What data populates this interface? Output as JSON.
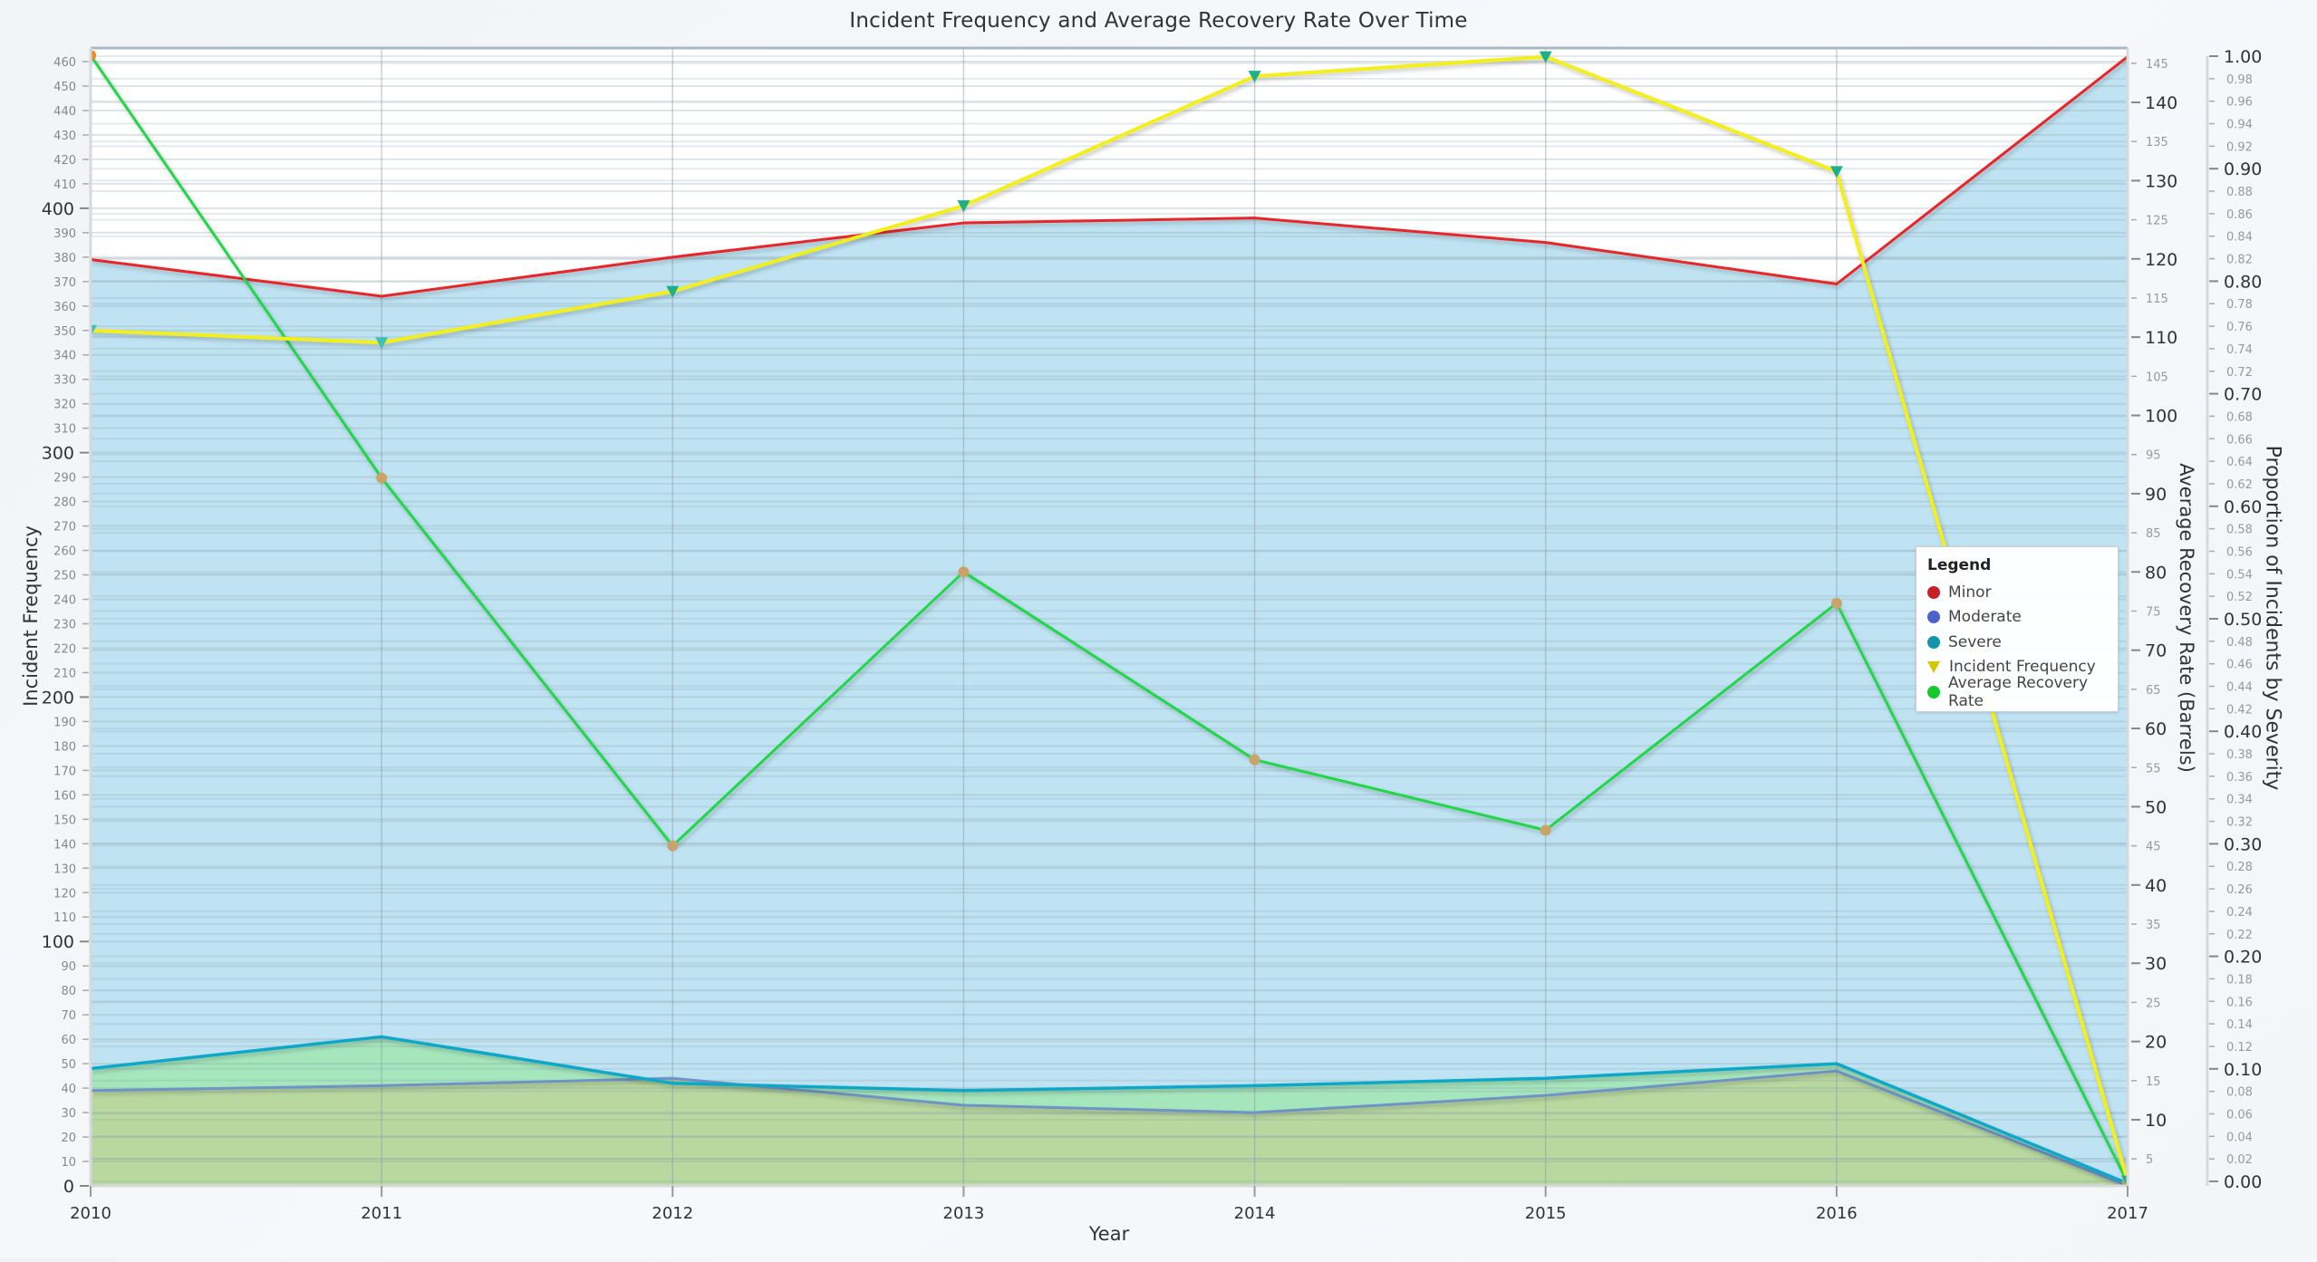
{
  "chart_data": {
    "type": "line",
    "title": "Incident Frequency and Average Recovery Rate Over Time",
    "xlabel": "Year",
    "ylabel": "Incident Frequency",
    "ylabel_right": "Average Recovery Rate (Barrels)",
    "ylabel_right2": "Proportion of Incidents by Severity",
    "categories": [
      "2010",
      "2011",
      "2012",
      "2013",
      "2014",
      "2015",
      "2016",
      "2017"
    ],
    "ylim": [
      0,
      462
    ],
    "ylim_right": [
      2,
      146
    ],
    "ylim_right2": [
      0.0,
      1.0
    ],
    "grid": true,
    "legend_position": "right, inside plot",
    "series": [
      {
        "name": "Minor",
        "kind": "area",
        "axis": "left",
        "color": "#e8262b",
        "marker_color": "#c62026",
        "values": [
          379,
          364,
          380,
          394,
          396,
          386,
          369,
          462
        ]
      },
      {
        "name": "Moderate",
        "kind": "area",
        "axis": "left",
        "color": "#6e93c4",
        "marker_color": "#4a63c8",
        "values": [
          39,
          41,
          44,
          33,
          30,
          37,
          47,
          0
        ]
      },
      {
        "name": "Severe",
        "kind": "area",
        "axis": "left",
        "color": "#11a8c8",
        "marker_color": "#1595ad",
        "values": [
          48,
          61,
          42,
          39,
          41,
          44,
          50,
          1
        ]
      },
      {
        "name": "Incident Frequency",
        "kind": "line",
        "marker": "triangle-down",
        "axis": "left",
        "color": "#f2ef1a",
        "marker_color": "#1fae8a",
        "values": [
          350,
          345,
          366,
          401,
          454,
          462,
          415,
          2
        ]
      },
      {
        "name": "Average Recovery Rate",
        "kind": "line",
        "marker": "circle",
        "axis": "right",
        "color": "#22d64a",
        "marker_color": "#c9a46a",
        "values": [
          146,
          92,
          45,
          80,
          56,
          47,
          76,
          2
        ]
      }
    ],
    "left_ticks_major": [
      0,
      100,
      200,
      300,
      400
    ],
    "left_ticks_minor": [
      10,
      20,
      30,
      40,
      50,
      60,
      70,
      80,
      90,
      110,
      120,
      130,
      140,
      150,
      160,
      170,
      180,
      190,
      210,
      220,
      230,
      240,
      250,
      260,
      270,
      280,
      290,
      310,
      320,
      330,
      340,
      350,
      360,
      370,
      380,
      390,
      410,
      420,
      430,
      440,
      450,
      460
    ],
    "right_ticks_major": [
      10,
      20,
      30,
      40,
      50,
      60,
      70,
      80,
      90,
      100,
      110,
      120,
      130,
      140
    ],
    "right_ticks_minor": [
      5,
      15,
      25,
      35,
      45,
      55,
      65,
      75,
      85,
      95,
      105,
      115,
      125,
      135,
      145
    ],
    "right2_ticks_major": [
      "0.00",
      "0.10",
      "0.20",
      "0.30",
      "0.40",
      "0.50",
      "0.60",
      "0.70",
      "0.80",
      "0.90",
      "1.00"
    ],
    "right2_ticks_minor": [
      "0.02",
      "0.04",
      "0.06",
      "0.08",
      "0.12",
      "0.14",
      "0.16",
      "0.18",
      "0.22",
      "0.24",
      "0.26",
      "0.28",
      "0.32",
      "0.34",
      "0.36",
      "0.38",
      "0.42",
      "0.44",
      "0.46",
      "0.48",
      "0.52",
      "0.54",
      "0.56",
      "0.58",
      "0.62",
      "0.64",
      "0.66",
      "0.68",
      "0.72",
      "0.74",
      "0.76",
      "0.78",
      "0.82",
      "0.84",
      "0.86",
      "0.88",
      "0.92",
      "0.94",
      "0.96",
      "0.98"
    ]
  },
  "legend": {
    "title": "Legend",
    "items": [
      {
        "label": "Minor",
        "shape": "dot",
        "color": "#c62026"
      },
      {
        "label": "Moderate",
        "shape": "dot",
        "color": "#4a63c8"
      },
      {
        "label": "Severe",
        "shape": "dot",
        "color": "#1595ad"
      },
      {
        "label": "Incident Frequency",
        "shape": "triangle",
        "color": "#d4c800"
      },
      {
        "label": "Average Recovery Rate",
        "shape": "dot",
        "color": "#16c82c"
      }
    ]
  },
  "colors": {
    "plot_background": "#ffffff",
    "area_minor_fill": "#bfe3f2",
    "area_lower_fill": "#a6e6bd",
    "area_moderate_fill": "#b8d8a0",
    "grid": "#d4d7db"
  }
}
